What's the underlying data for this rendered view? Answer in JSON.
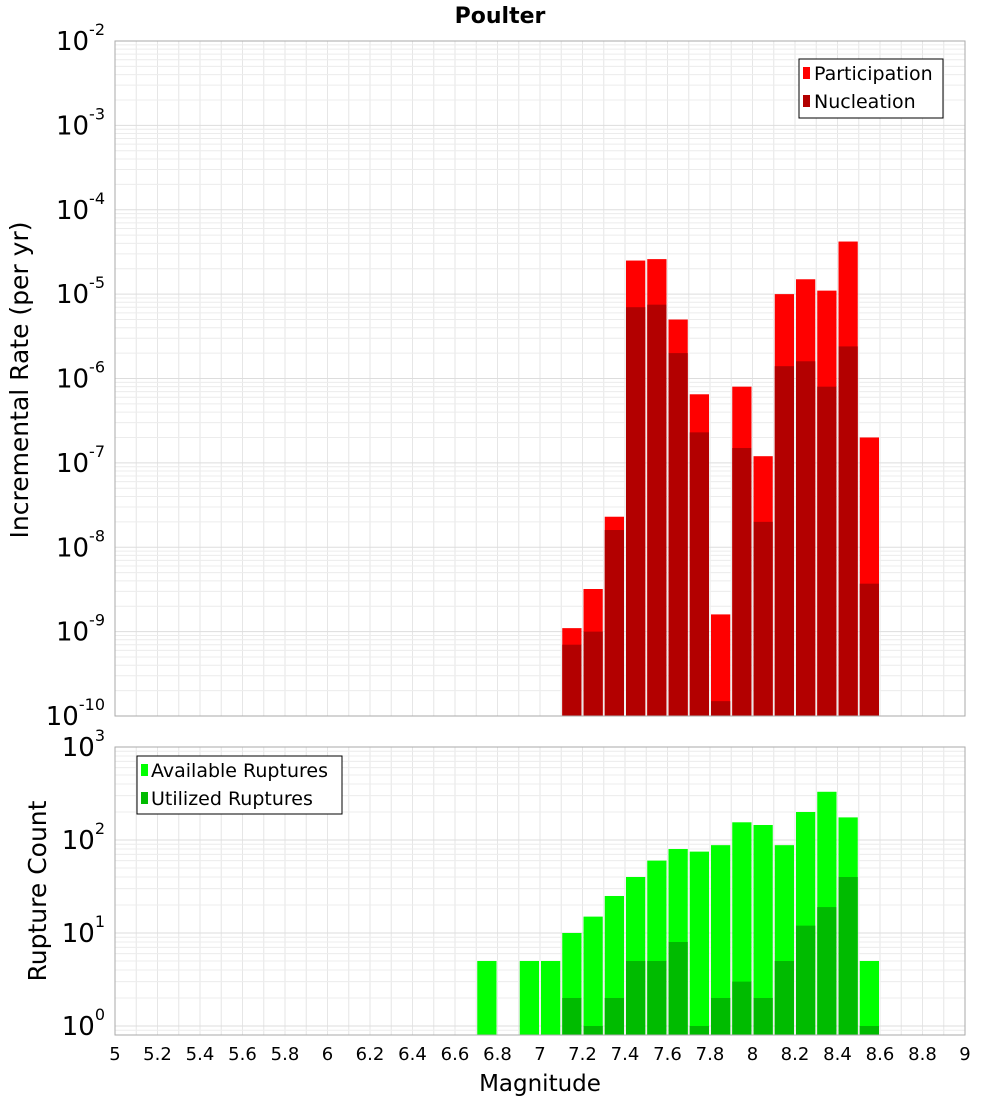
{
  "chart_data": [
    {
      "type": "bar",
      "title": "Poulter",
      "ylabel": "Incremental Rate (per yr)",
      "xlabel": "",
      "yscale": "log",
      "ylim": [
        1e-10,
        0.01
      ],
      "xlim": [
        5,
        9
      ],
      "grid": true,
      "legend_position": "top-right",
      "y_ticks": [
        {
          "base": "10",
          "exp": "-10"
        },
        {
          "base": "10",
          "exp": "-9"
        },
        {
          "base": "10",
          "exp": "-8"
        },
        {
          "base": "10",
          "exp": "-7"
        },
        {
          "base": "10",
          "exp": "-6"
        },
        {
          "base": "10",
          "exp": "-5"
        },
        {
          "base": "10",
          "exp": "-4"
        },
        {
          "base": "10",
          "exp": "-3"
        },
        {
          "base": "10",
          "exp": "-2"
        }
      ],
      "x": [
        7.15,
        7.25,
        7.35,
        7.45,
        7.55,
        7.65,
        7.75,
        7.85,
        7.95,
        8.05,
        8.15,
        8.25,
        8.35,
        8.45,
        8.55
      ],
      "bar_width": 0.1,
      "series": [
        {
          "name": "Participation",
          "color": "#ff0000",
          "values": [
            1.1e-09,
            3.2e-09,
            2.3e-08,
            2.5e-05,
            2.6e-05,
            5e-06,
            6.5e-07,
            1.6e-09,
            8e-07,
            1.2e-07,
            1e-05,
            1.5e-05,
            1.1e-05,
            4.2e-05,
            2e-07
          ]
        },
        {
          "name": "Nucleation",
          "color": "#b30000",
          "values": [
            7e-10,
            1e-09,
            1.6e-08,
            7e-06,
            7.5e-06,
            2e-06,
            2.3e-07,
            1.5e-10,
            1.5e-07,
            2e-08,
            1.4e-06,
            1.6e-06,
            8e-07,
            2.4e-06,
            3.7e-09
          ]
        }
      ]
    },
    {
      "type": "bar",
      "title": "",
      "ylabel": "Rupture Count",
      "xlabel": "Magnitude",
      "yscale": "log",
      "ylim": [
        0.8,
        1000
      ],
      "xlim": [
        5,
        9
      ],
      "grid": true,
      "legend_position": "top-left",
      "y_ticks": [
        {
          "base": "10",
          "exp": "0"
        },
        {
          "base": "10",
          "exp": "1"
        },
        {
          "base": "10",
          "exp": "2"
        },
        {
          "base": "10",
          "exp": "3"
        }
      ],
      "x_tick_labels": [
        "5",
        "5.2",
        "5.4",
        "5.6",
        "5.8",
        "6",
        "6.2",
        "6.4",
        "6.6",
        "6.8",
        "7",
        "7.2",
        "7.4",
        "7.6",
        "7.8",
        "8",
        "8.2",
        "8.4",
        "8.6",
        "8.8",
        "9"
      ],
      "x": [
        6.75,
        6.95,
        7.05,
        7.15,
        7.25,
        7.35,
        7.45,
        7.55,
        7.65,
        7.75,
        7.85,
        7.95,
        8.05,
        8.15,
        8.25,
        8.35,
        8.45,
        8.55
      ],
      "bar_width": 0.1,
      "series": [
        {
          "name": "Available Ruptures",
          "color": "#00ff00",
          "values": [
            5,
            5,
            5,
            10,
            15,
            25,
            40,
            60,
            80,
            75,
            88,
            155,
            145,
            88,
            200,
            330,
            175,
            5
          ]
        },
        {
          "name": "Utilized Ruptures",
          "color": "#00bb00",
          "values": [
            0,
            0,
            0,
            2,
            1,
            2,
            5,
            5,
            8,
            1,
            2,
            3,
            2,
            5,
            12,
            19,
            40,
            1
          ]
        }
      ]
    }
  ]
}
